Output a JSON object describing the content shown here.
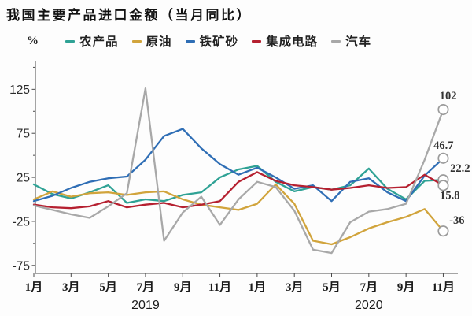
{
  "title": "我国主要产品进口金额（当月同比）",
  "y_axis": {
    "unit": "%",
    "major_ticks": [
      125,
      75,
      25,
      -25,
      -75
    ],
    "minor_ticks": [
      150,
      100,
      50,
      0,
      -50
    ]
  },
  "x_axis": {
    "tick_labels": [
      "1月",
      "3月",
      "5月",
      "7月",
      "9月",
      "11月",
      "1月",
      "3月",
      "5月",
      "7月",
      "9月",
      "11月"
    ],
    "year_labels": [
      "2019",
      "2020"
    ]
  },
  "legend": [
    {
      "id": "agricultural-products",
      "label": "农产品",
      "color": "#2FA295"
    },
    {
      "id": "crude-oil",
      "label": "原油",
      "color": "#D1A43C"
    },
    {
      "id": "iron-ore",
      "label": "铁矿砂",
      "color": "#2F6EB5"
    },
    {
      "id": "integrated-circuits",
      "label": "集成电路",
      "color": "#B52030"
    },
    {
      "id": "automobiles",
      "label": "汽车",
      "color": "#A8A8A8"
    }
  ],
  "chart_data": {
    "type": "line",
    "title": "我国主要产品进口金额（当月同比）",
    "ylabel": "%",
    "ylim": [
      -85,
      145
    ],
    "grid": false,
    "legend_position": "top",
    "end_marker": "open-circle",
    "x": [
      "2019-01",
      "2019-02",
      "2019-03",
      "2019-04",
      "2019-05",
      "2019-06",
      "2019-07",
      "2019-08",
      "2019-09",
      "2019-10",
      "2019-11",
      "2019-12",
      "2020-01",
      "2020-02",
      "2020-03",
      "2020-04",
      "2020-05",
      "2020-06",
      "2020-07",
      "2020-08",
      "2020-09",
      "2020-10",
      "2020-11"
    ],
    "series": [
      {
        "name": "农产品",
        "id": "agricultural-products",
        "color": "#2FA295",
        "values": [
          17,
          6,
          1,
          8,
          16,
          -4,
          0,
          -2,
          5,
          8,
          25,
          34,
          38,
          20,
          9,
          14,
          11,
          16,
          35,
          12,
          0,
          21,
          22.2
        ],
        "end_label": "22.2"
      },
      {
        "name": "原油",
        "id": "crude-oil",
        "color": "#D1A43C",
        "values": [
          0,
          9,
          3,
          7,
          8,
          5,
          8,
          9,
          0,
          -6,
          -9,
          -12,
          -5,
          17,
          -5,
          -47,
          -51,
          -43,
          -33,
          -26,
          -20,
          -11,
          -36
        ],
        "end_label": "-36"
      },
      {
        "name": "铁矿砂",
        "id": "iron-ore",
        "color": "#2F6EB5",
        "values": [
          -2,
          4,
          13,
          20,
          24,
          26,
          45,
          72,
          80,
          58,
          40,
          28,
          36,
          25,
          12,
          16,
          -2,
          20,
          24,
          8,
          -2,
          27,
          46.7
        ],
        "end_label": "46.7"
      },
      {
        "name": "集成电路",
        "id": "integrated-circuits",
        "color": "#B52030",
        "values": [
          -6,
          -9,
          -10,
          -8,
          -2,
          -9,
          -6,
          -4,
          -9,
          -6,
          -2,
          20,
          31,
          21,
          16,
          14,
          11,
          13,
          16,
          13,
          14,
          28,
          15.8
        ],
        "end_label": "15.8"
      },
      {
        "name": "汽车",
        "id": "automobiles",
        "color": "#A8A8A8",
        "values": [
          -7,
          -12,
          -17,
          -21,
          -8,
          7,
          126,
          -47,
          -15,
          3,
          -29,
          0,
          20,
          14,
          -13,
          -57,
          -61,
          -26,
          -14,
          -11,
          -5,
          45,
          102
        ],
        "end_label": "102"
      }
    ]
  }
}
